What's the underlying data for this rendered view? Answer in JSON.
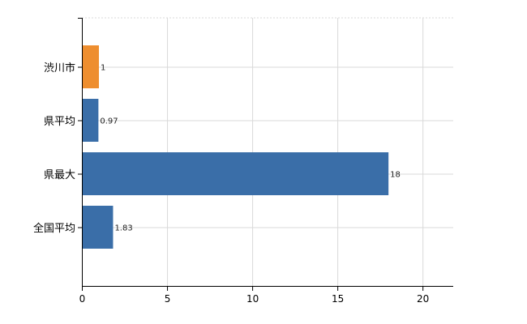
{
  "chart_data": {
    "type": "bar",
    "orientation": "horizontal",
    "categories": [
      "渋川市",
      "県平均",
      "県最大",
      "全国平均"
    ],
    "values": [
      1,
      0.97,
      18,
      1.83
    ],
    "data_labels": [
      "1",
      "0.97",
      "18",
      "1.83"
    ],
    "bar_colors": [
      "#ee8e2f",
      "#3a6ea8",
      "#3a6ea8",
      "#3a6ea8"
    ],
    "xlim": [
      0,
      21.8
    ],
    "xticks": [
      0,
      5,
      10,
      15,
      20
    ],
    "xtick_labels": [
      "0",
      "5",
      "10",
      "15",
      "20"
    ],
    "grid": true,
    "legend": false
  }
}
